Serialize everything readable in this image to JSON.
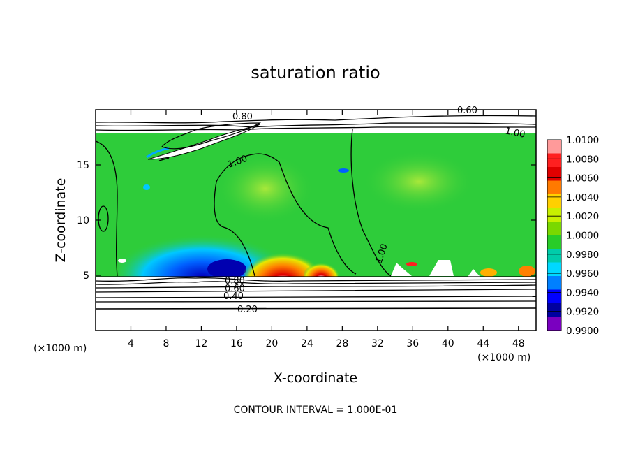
{
  "chart_data": {
    "type": "heatmap",
    "title": "saturation ratio",
    "xlabel": "X-coordinate",
    "ylabel": "Z-coordinate",
    "x_unit": "(×1000 m)",
    "z_unit": "(×1000 m)",
    "xlim": [
      0,
      50
    ],
    "ylim": [
      0,
      20
    ],
    "x_ticks": [
      4,
      8,
      12,
      16,
      20,
      24,
      28,
      32,
      36,
      40,
      44,
      48
    ],
    "y_ticks": [
      5,
      10,
      15
    ],
    "colorbar": {
      "levels": [
        "1.0100",
        "1.0080",
        "1.0060",
        "1.0040",
        "1.0020",
        "1.0000",
        "0.9980",
        "0.9960",
        "0.9940",
        "0.9920",
        "0.9900"
      ],
      "colors": [
        "#ff9a9a",
        "#ff2020",
        "#e00000",
        "#ff7a00",
        "#ffd000",
        "#c8f000",
        "#7ad800",
        "#28cc28",
        "#00ccaa",
        "#00d8ff",
        "#0080ff",
        "#0000ff",
        "#0000a0",
        "#7a00c0"
      ]
    },
    "contour_labels": [
      {
        "text": "0.80"
      },
      {
        "text": "0.60"
      },
      {
        "text": "1.00"
      },
      {
        "text": "1.00"
      },
      {
        "text": "1.00"
      },
      {
        "text": "0.80"
      },
      {
        "text": "0.60"
      },
      {
        "text": "0.40"
      },
      {
        "text": "0.20"
      }
    ],
    "contour_interval": "CONTOUR INTERVAL = 1.000E-01"
  }
}
